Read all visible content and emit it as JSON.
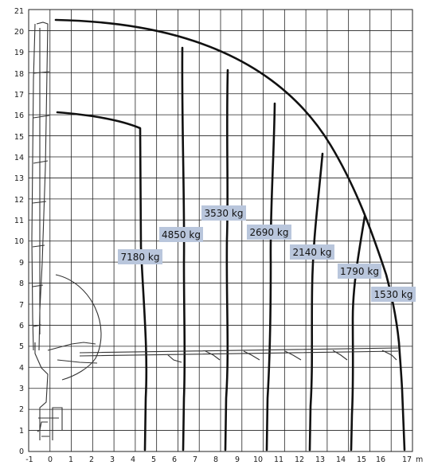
{
  "diagram": {
    "unit_label": "m",
    "x_ticks": [
      "-1",
      "0",
      "1",
      "2",
      "3",
      "4",
      "5",
      "6",
      "7",
      "8",
      "9",
      "10",
      "11",
      "12",
      "13",
      "14",
      "15",
      "16",
      "17"
    ],
    "y_ticks": [
      "0",
      "1",
      "2",
      "3",
      "4",
      "5",
      "6",
      "7",
      "8",
      "9",
      "10",
      "11",
      "12",
      "13",
      "14",
      "15",
      "16",
      "17",
      "18",
      "19",
      "20",
      "21"
    ],
    "colors": {
      "grid": "#222222",
      "curve": "#111111",
      "label_bg": "#b9c6dc",
      "crane": "#333333"
    },
    "capacity_labels": [
      {
        "text": "7180 kg"
      },
      {
        "text": "4850 kg"
      },
      {
        "text": "3530 kg"
      },
      {
        "text": "2690 kg"
      },
      {
        "text": "2140 kg"
      },
      {
        "text": "1790 kg"
      },
      {
        "text": "1530 kg"
      }
    ]
  }
}
